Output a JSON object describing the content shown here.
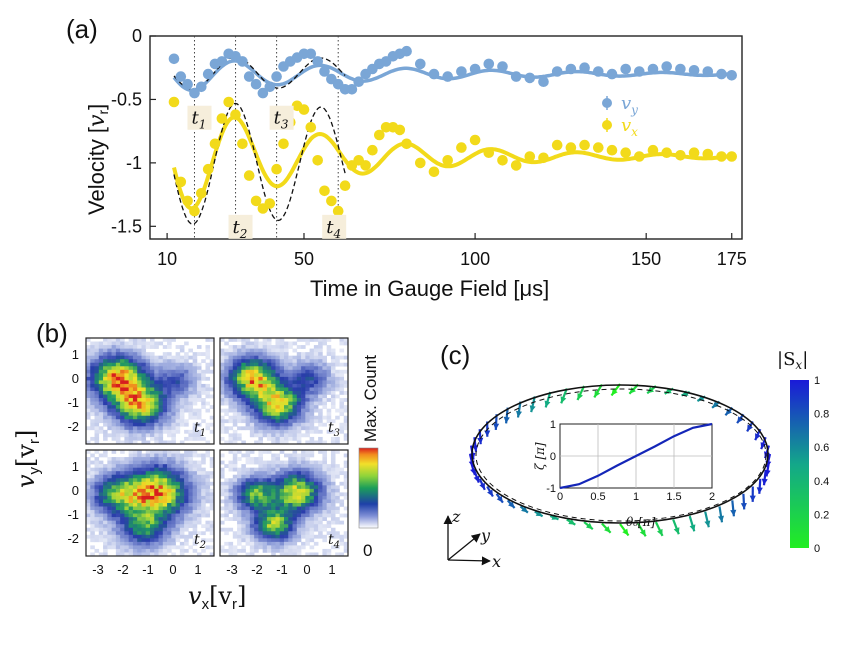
{
  "chart_data": [
    {
      "type": "scatter",
      "panel": "(a)",
      "xlabel": "Time in Gauge Field [μs]",
      "ylabel": "Velocity [vᵣ]",
      "xlim": [
        5,
        178
      ],
      "ylim": [
        -1.6,
        0
      ],
      "x_ticks": [
        10,
        50,
        100,
        150,
        175
      ],
      "y_ticks": [
        0,
        -0.5,
        -1,
        -1.5
      ],
      "y_tick_labels": [
        "0",
        "-0.5",
        "-1",
        "-1.5"
      ],
      "legend": [
        "v_y",
        "v_x"
      ],
      "legend_position": "right",
      "time_markers": [
        {
          "label": "t",
          "sub": "1",
          "x": 18
        },
        {
          "label": "t",
          "sub": "2",
          "x": 30
        },
        {
          "label": "t",
          "sub": "3",
          "x": 42
        },
        {
          "label": "t",
          "sub": "4",
          "x": 60
        }
      ],
      "series": [
        {
          "name": "v_y",
          "color": "#7aa6d6",
          "x": [
            12,
            14,
            16,
            18,
            20,
            22,
            24,
            26,
            28,
            30,
            32,
            34,
            36,
            38,
            40,
            42,
            44,
            46,
            48,
            50,
            52,
            54,
            56,
            58,
            60,
            62,
            64,
            66,
            68,
            70,
            72,
            74,
            76,
            78,
            80,
            84,
            88,
            92,
            96,
            100,
            104,
            108,
            112,
            116,
            120,
            124,
            128,
            132,
            136,
            140,
            144,
            148,
            152,
            156,
            160,
            164,
            168,
            172,
            175
          ],
          "y": [
            -0.18,
            -0.32,
            -0.38,
            -0.45,
            -0.4,
            -0.3,
            -0.22,
            -0.2,
            -0.14,
            -0.16,
            -0.2,
            -0.32,
            -0.38,
            -0.45,
            -0.4,
            -0.32,
            -0.24,
            -0.2,
            -0.17,
            -0.14,
            -0.14,
            -0.2,
            -0.28,
            -0.34,
            -0.38,
            -0.42,
            -0.42,
            -0.36,
            -0.3,
            -0.26,
            -0.22,
            -0.2,
            -0.16,
            -0.14,
            -0.12,
            -0.22,
            -0.3,
            -0.32,
            -0.28,
            -0.26,
            -0.22,
            -0.24,
            -0.32,
            -0.33,
            -0.36,
            -0.28,
            -0.26,
            -0.25,
            -0.28,
            -0.3,
            -0.26,
            -0.28,
            -0.26,
            -0.24,
            -0.26,
            -0.27,
            -0.28,
            -0.3,
            -0.31
          ]
        },
        {
          "name": "v_x",
          "color": "#f2da1a",
          "x": [
            12,
            14,
            16,
            18,
            20,
            22,
            24,
            26,
            28,
            30,
            32,
            34,
            36,
            38,
            40,
            42,
            44,
            46,
            48,
            50,
            52,
            54,
            56,
            58,
            60,
            62,
            64,
            66,
            68,
            70,
            72,
            74,
            76,
            78,
            80,
            84,
            88,
            92,
            96,
            100,
            104,
            108,
            112,
            116,
            120,
            124,
            128,
            132,
            136,
            140,
            144,
            148,
            152,
            156,
            160,
            164,
            168,
            172,
            175
          ],
          "y": [
            -0.52,
            -1.15,
            -1.3,
            -1.38,
            -1.24,
            -1.05,
            -0.85,
            -0.65,
            -0.52,
            -0.62,
            -0.85,
            -1.1,
            -1.3,
            -1.36,
            -1.32,
            -1.05,
            -0.85,
            -0.68,
            -0.55,
            -0.58,
            -0.72,
            -0.98,
            -1.22,
            -1.3,
            -1.38,
            -1.18,
            -1.02,
            -0.98,
            -1.02,
            -0.9,
            -0.78,
            -0.72,
            -0.72,
            -0.74,
            -0.85,
            -1.0,
            -1.07,
            -0.98,
            -0.88,
            -0.82,
            -0.92,
            -0.98,
            -1.02,
            -0.95,
            -0.96,
            -0.86,
            -0.88,
            -0.86,
            -0.88,
            -0.9,
            -0.92,
            -0.95,
            -0.9,
            -0.92,
            -0.94,
            -0.92,
            -0.93,
            -0.95,
            -0.95
          ]
        }
      ]
    },
    {
      "type": "heatmap",
      "panel": "(b)",
      "xlabel": "v_x [v_r]",
      "ylabel": "v_y [v_r]",
      "x_ticks": [
        "-3",
        "-2",
        "-1",
        "0",
        "1"
      ],
      "y_ticks": [
        "1",
        "0",
        "-1",
        "-2"
      ],
      "colorbar_label": "Max. Count",
      "colorbar_min_label": "0",
      "panels": [
        {
          "label": "t",
          "sub": "1"
        },
        {
          "label": "t",
          "sub": "3"
        },
        {
          "label": "t",
          "sub": "2"
        },
        {
          "label": "t",
          "sub": "4"
        }
      ]
    },
    {
      "type": "diagram",
      "panel": "(c)",
      "colorbar_label": "|S_x|",
      "colorbar_ticks": [
        "1",
        "0.8",
        "0.6",
        "0.4",
        "0.2",
        "0"
      ],
      "axes_labels": {
        "z": "z",
        "y": "y",
        "x": "x"
      },
      "inset": {
        "type": "line",
        "xlabel": "θ₀[π]",
        "ylabel": "ζ [π]",
        "x_ticks": [
          "0",
          "0.5",
          "1",
          "1.5",
          "2"
        ],
        "y_ticks": [
          "1",
          "0",
          "-1"
        ],
        "x": [
          0,
          0.25,
          0.5,
          0.75,
          1.0,
          1.25,
          1.5,
          1.75,
          2.0
        ],
        "y": [
          -1.0,
          -0.88,
          -0.62,
          -0.3,
          0.0,
          0.3,
          0.62,
          0.88,
          1.0
        ]
      }
    }
  ],
  "labels": {
    "panel_a": "(a)",
    "panel_b": "(b)",
    "panel_c": "(c)",
    "legend_vy": "v",
    "legend_vy_sub": "y",
    "legend_vx": "v",
    "legend_vx_sub": "x",
    "a_ylabel_main": "Velocity [",
    "a_ylabel_var": "v",
    "a_ylabel_sub": "r",
    "a_ylabel_end": "]",
    "a_xlabel": "Time in Gauge Field [μs]",
    "b_ylabel": "v",
    "b_ylabel_sub": "y",
    "b_ylabel_unit": "[v",
    "b_ylabel_unit_sub": "r",
    "b_ylabel_close": "]",
    "b_xlabel": "v",
    "b_xlabel_sub": "x",
    "b_xlabel_unit": "[v",
    "b_xlabel_unit_sub": "r",
    "b_xlabel_close": "]",
    "b_colorbar": "Max. Count",
    "b_colorbar_zero": "0",
    "c_colorbar": "|S",
    "c_colorbar_sub": "x",
    "c_colorbar_close": "|"
  }
}
